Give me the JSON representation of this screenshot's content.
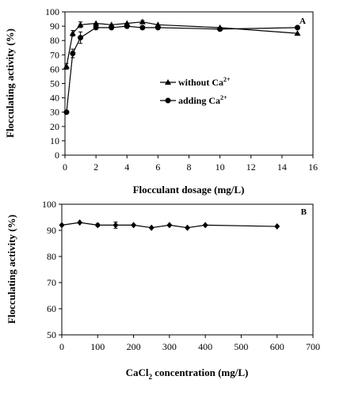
{
  "chart_data": [
    {
      "type": "line",
      "panel_label": "A",
      "xlabel": "Flocculant dosage (mg/L)",
      "ylabel": "Flocculating activity (%)",
      "xlim": [
        0,
        16
      ],
      "ylim": [
        0,
        100
      ],
      "xticks": [
        0,
        2,
        4,
        6,
        8,
        10,
        12,
        14,
        16
      ],
      "yticks": [
        0,
        10,
        20,
        30,
        40,
        50,
        60,
        70,
        80,
        90,
        100
      ],
      "grid": false,
      "legend_position": "center",
      "series": [
        {
          "name": "without Ca",
          "name_superscript": "2+",
          "marker": "triangle",
          "x": [
            0.1,
            0.5,
            1,
            2,
            3,
            4,
            5,
            6,
            10,
            15
          ],
          "y": [
            62,
            85,
            91,
            92,
            91,
            92,
            93,
            91,
            89,
            85
          ],
          "error": [
            2,
            2,
            2,
            0,
            0,
            0,
            1,
            0,
            0,
            0
          ]
        },
        {
          "name": "adding Ca",
          "name_superscript": "2+",
          "marker": "circle",
          "x": [
            0.1,
            0.5,
            1,
            2,
            3,
            4,
            5,
            6,
            10,
            15
          ],
          "y": [
            30,
            71,
            82,
            89,
            89,
            90,
            89,
            89,
            88,
            89
          ],
          "error": [
            0,
            3,
            4,
            0,
            0,
            0,
            0,
            0,
            0,
            0
          ]
        }
      ]
    },
    {
      "type": "line",
      "panel_label": "B",
      "xlabel_prefix": "CaCl",
      "xlabel_subscript": "2",
      "xlabel_suffix": " concentration (mg/L)",
      "ylabel": "Flocculating activity (%)",
      "xlim": [
        0,
        700
      ],
      "ylim": [
        50,
        100
      ],
      "xticks": [
        0,
        100,
        200,
        300,
        400,
        500,
        600,
        700
      ],
      "yticks": [
        50,
        60,
        70,
        80,
        90,
        100
      ],
      "grid": false,
      "series": [
        {
          "marker": "diamond",
          "x": [
            0,
            50,
            100,
            150,
            200,
            250,
            300,
            350,
            400,
            600
          ],
          "y": [
            92,
            93,
            92,
            92,
            92,
            91,
            92,
            91,
            92,
            91.5
          ],
          "error": [
            0,
            0,
            0.5,
            1.2,
            0,
            0,
            0,
            0,
            0,
            0
          ]
        }
      ]
    }
  ]
}
